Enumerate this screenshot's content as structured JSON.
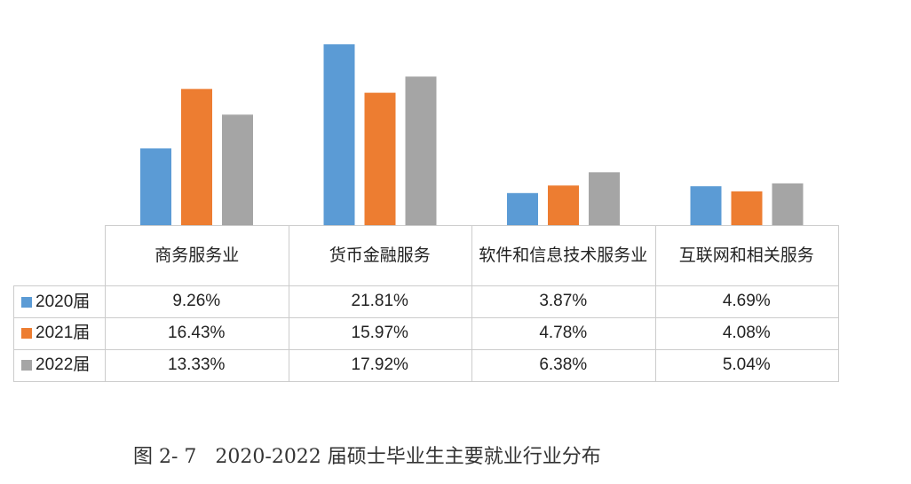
{
  "chart_data": {
    "type": "bar",
    "title": "图 2- 7   2020-2022 届硕士毕业生主要就业行业分布",
    "categories": [
      "商务服务业",
      "货币金融服务",
      "软件和信息技术服务业",
      "互联网和相关服务"
    ],
    "series": [
      {
        "name": "2020届",
        "color": "#5b9bd5",
        "values": [
          9.26,
          21.81,
          3.87,
          4.69
        ],
        "labels": [
          "9.26%",
          "21.81%",
          "3.87%",
          "4.69%"
        ]
      },
      {
        "name": "2021届",
        "color": "#ed7d31",
        "values": [
          16.43,
          15.97,
          4.78,
          4.08
        ],
        "labels": [
          "16.43%",
          "15.97%",
          "4.78%",
          "4.08%"
        ]
      },
      {
        "name": "2022届",
        "color": "#a5a5a5",
        "values": [
          13.33,
          17.92,
          6.38,
          5.04
        ],
        "labels": [
          "13.33%",
          "17.92%",
          "6.38%",
          "5.04%"
        ]
      }
    ],
    "ylim": [
      0,
      21.81
    ],
    "grid": false,
    "legend": "data-table"
  }
}
